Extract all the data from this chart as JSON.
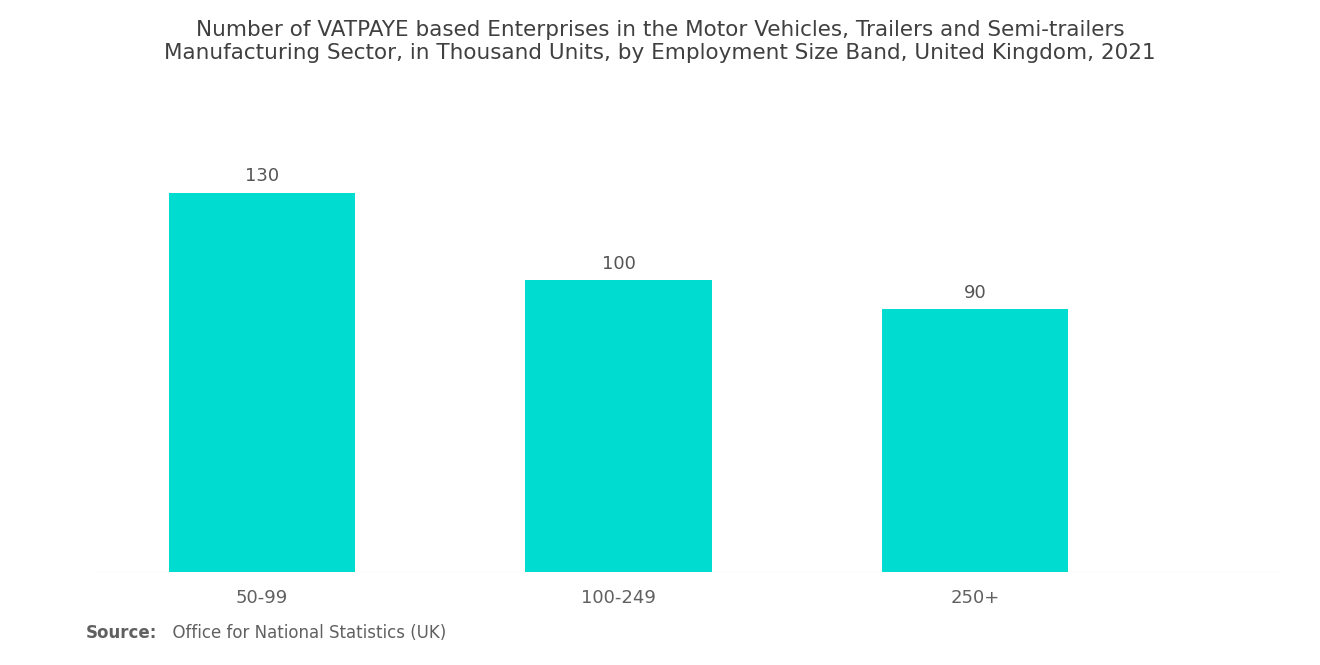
{
  "title": "Number of VATPAYE based Enterprises in the Motor Vehicles, Trailers and Semi-trailers\nManufacturing Sector, in Thousand Units, by Employment Size Band, United Kingdom, 2021",
  "categories": [
    "50-99",
    "100-249",
    "250+"
  ],
  "values": [
    130,
    100,
    90
  ],
  "bar_color": "#00DDD0",
  "background_color": "#ffffff",
  "title_color": "#404040",
  "label_color": "#606060",
  "value_color": "#555555",
  "source_bold": "Source:",
  "source_text": "  Office for National Statistics (UK)",
  "title_fontsize": 15.5,
  "label_fontsize": 13,
  "value_fontsize": 13,
  "source_fontsize": 12,
  "ylim": [
    0,
    155
  ],
  "bar_positions": [
    0.5,
    1.55,
    2.6
  ],
  "bar_width": 0.55,
  "xlim": [
    0.0,
    3.5
  ]
}
